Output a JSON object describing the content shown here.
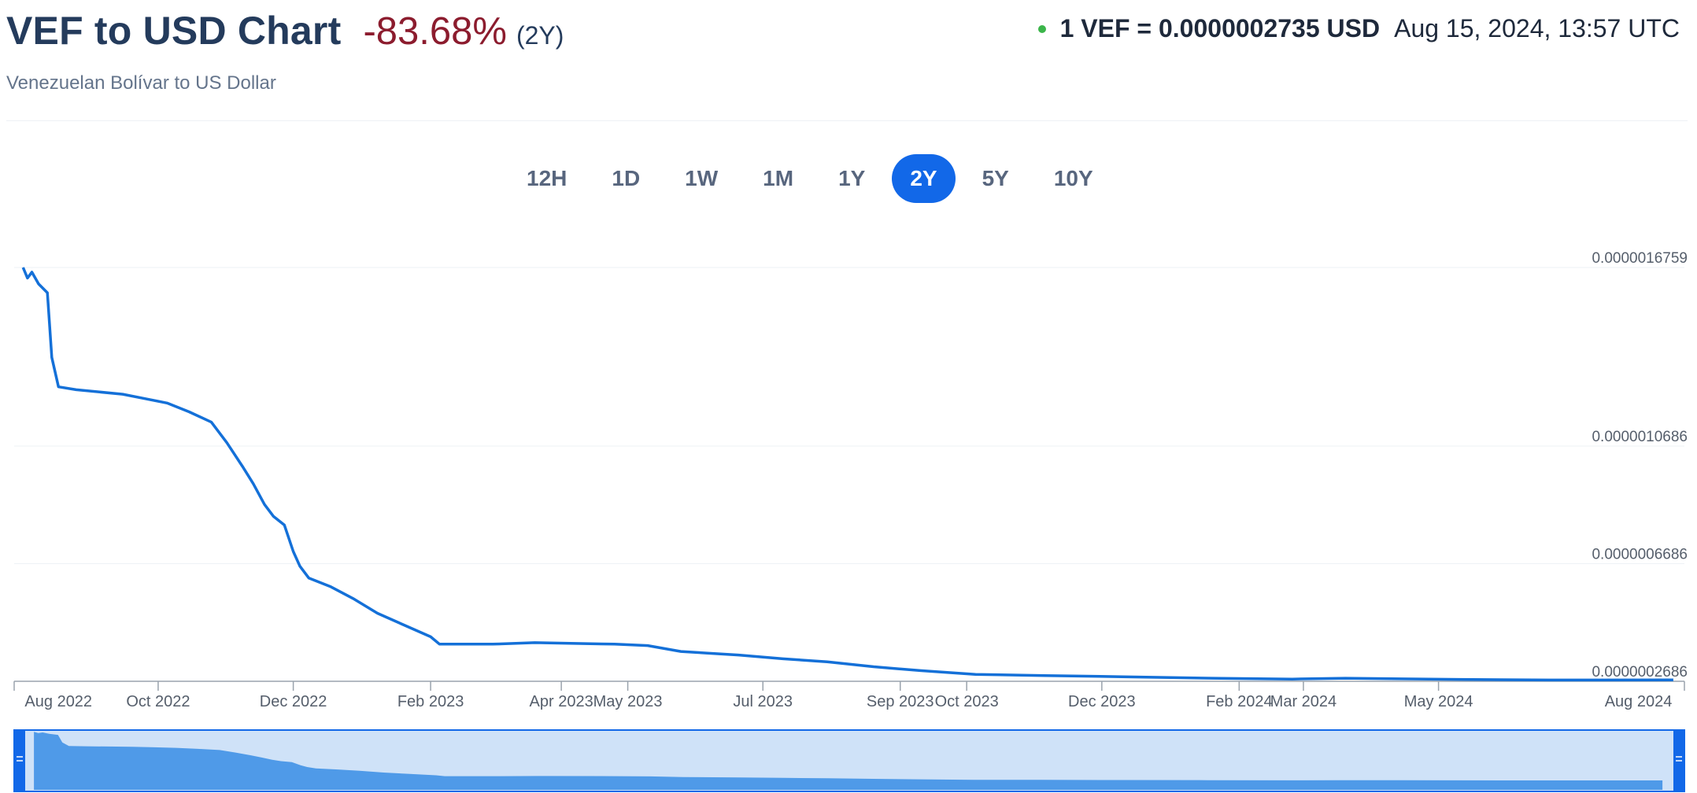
{
  "header": {
    "title": "VEF to USD Chart",
    "change": "-83.68%",
    "period": "(2Y)",
    "subtitle": "Venezuelan Bolívar to US Dollar",
    "rate": "1 VEF = 0.0000002735 USD",
    "timestamp": "Aug 15, 2024, 13:57 UTC",
    "status_color": "#3bb54a"
  },
  "tabs": [
    {
      "label": "12H",
      "active": false
    },
    {
      "label": "1D",
      "active": false
    },
    {
      "label": "1W",
      "active": false
    },
    {
      "label": "1M",
      "active": false
    },
    {
      "label": "1Y",
      "active": false
    },
    {
      "label": "2Y",
      "active": true
    },
    {
      "label": "5Y",
      "active": false
    },
    {
      "label": "10Y",
      "active": false
    }
  ],
  "colors": {
    "line": "#1470d8",
    "tab_active": "#1268e8",
    "change_negative": "#8c1c2e",
    "navigator_fill": "#cfe2f8",
    "navigator_area": "#4f9ae8",
    "navigator_handle": "#1268e8"
  },
  "chart_data": {
    "type": "line",
    "series": [
      {
        "name": "VEF/USD",
        "points": [
          [
            "2022-08-01",
            1.6759e-06
          ],
          [
            "2022-08-03",
            1.64e-06
          ],
          [
            "2022-08-05",
            1.66e-06
          ],
          [
            "2022-08-08",
            1.62e-06
          ],
          [
            "2022-08-12",
            1.59e-06
          ],
          [
            "2022-08-14",
            1.37e-06
          ],
          [
            "2022-08-17",
            1.27e-06
          ],
          [
            "2022-08-25",
            1.26e-06
          ],
          [
            "2022-09-15",
            1.245e-06
          ],
          [
            "2022-09-25",
            1.23e-06
          ],
          [
            "2022-10-05",
            1.215e-06
          ],
          [
            "2022-10-15",
            1.185e-06
          ],
          [
            "2022-10-25",
            1.15e-06
          ],
          [
            "2022-11-01",
            1.08e-06
          ],
          [
            "2022-11-08",
            1e-06
          ],
          [
            "2022-11-13",
            9.4e-07
          ],
          [
            "2022-11-18",
            8.7e-07
          ],
          [
            "2022-11-22",
            8.3e-07
          ],
          [
            "2022-11-27",
            8e-07
          ],
          [
            "2022-12-01",
            7.1e-07
          ],
          [
            "2022-12-04",
            6.6e-07
          ],
          [
            "2022-12-08",
            6.2e-07
          ],
          [
            "2022-12-18",
            5.9e-07
          ],
          [
            "2022-12-28",
            5.5e-07
          ],
          [
            "2023-01-08",
            5e-07
          ],
          [
            "2023-01-20",
            4.6e-07
          ],
          [
            "2023-02-01",
            4.2e-07
          ],
          [
            "2023-02-05",
            3.95e-07
          ],
          [
            "2023-03-01",
            3.95e-07
          ],
          [
            "2023-03-20",
            4e-07
          ],
          [
            "2023-04-25",
            3.95e-07
          ],
          [
            "2023-05-10",
            3.9e-07
          ],
          [
            "2023-05-25",
            3.7e-07
          ],
          [
            "2023-06-20",
            3.58e-07
          ],
          [
            "2023-07-10",
            3.45e-07
          ],
          [
            "2023-07-30",
            3.35e-07
          ],
          [
            "2023-08-20",
            3.18e-07
          ],
          [
            "2023-09-10",
            3.05e-07
          ],
          [
            "2023-10-05",
            2.92e-07
          ],
          [
            "2023-11-05",
            2.88e-07
          ],
          [
            "2023-12-10",
            2.84e-07
          ],
          [
            "2024-01-20",
            2.79e-07
          ],
          [
            "2024-02-25",
            2.76e-07
          ],
          [
            "2024-03-20",
            2.79e-07
          ],
          [
            "2024-05-10",
            2.75e-07
          ],
          [
            "2024-06-20",
            2.73e-07
          ],
          [
            "2024-08-15",
            2.735e-07
          ]
        ]
      }
    ],
    "x_ticks": [
      "Aug 2022",
      "Oct 2022",
      "Dec 2022",
      "Feb 2023",
      "Apr 2023",
      "May 2023",
      "Jul 2023",
      "Sep 2023",
      "Oct 2023",
      "Dec 2023",
      "Feb 2024",
      "Mar 2024",
      "May 2024",
      "Aug 2024"
    ],
    "y_ticks": [
      "0.0000016759",
      "0.0000010686",
      "0.0000006686",
      "0.0000002686"
    ],
    "xlim": [
      "2022-07-28",
      "2024-08-20"
    ],
    "ylim": [
      2.686e-07,
      1.6759e-06
    ],
    "grid": true,
    "navigator": true
  }
}
